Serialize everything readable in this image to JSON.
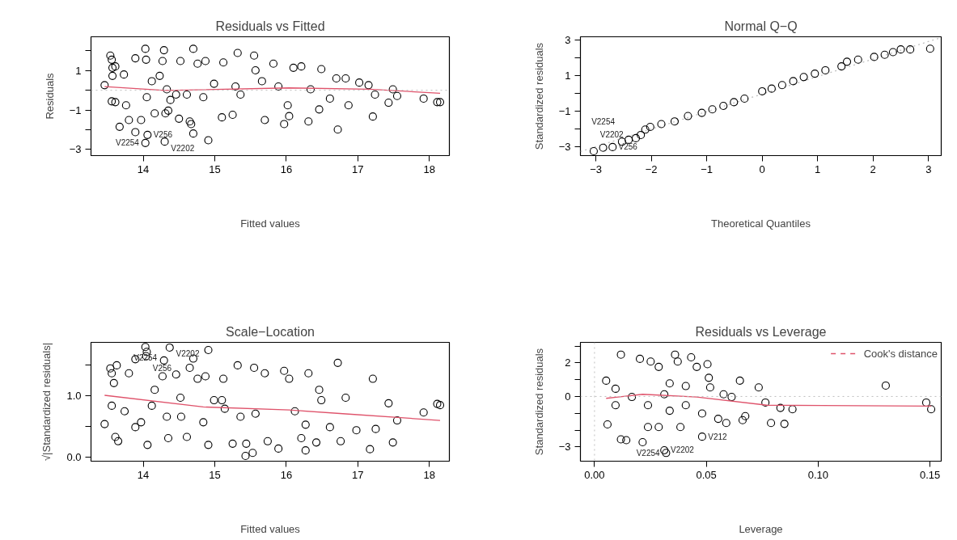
{
  "chart_data": [
    {
      "type": "scatter",
      "title": "Residuals vs Fitted",
      "xlabel": "Fitted values",
      "ylabel": "Residuals",
      "grid": false,
      "xlim": [
        13.27,
        18.28
      ],
      "ylim": [
        -3.31,
        2.71
      ],
      "xticks": [
        14,
        15,
        16,
        17,
        18
      ],
      "yticks": [
        {
          "value": -3,
          "label": "−3"
        },
        {
          "value": -2,
          "label": null
        },
        {
          "value": -1,
          "label": "−1"
        },
        {
          "value": 0,
          "label": null
        },
        {
          "value": 1,
          "label": "1"
        },
        {
          "value": 2,
          "label": null
        }
      ],
      "ref_lines": [
        {
          "axis": "y",
          "value": 0,
          "label": null,
          "color": "#bebebe",
          "line_style": "dotted"
        }
      ],
      "series": [
        {
          "marker": "circle",
          "color": "#000000",
          "x": [
            14.3,
            13.46,
            13.54,
            13.56,
            13.57,
            13.61,
            13.57,
            13.56,
            13.61,
            13.67,
            13.76,
            13.73,
            13.8,
            13.89,
            13.89,
            13.97,
            14.03,
            14.04,
            14.05,
            14.06,
            14.03,
            14.12,
            14.29,
            14.27,
            14.33,
            14.35,
            14.31,
            14.38,
            14.52,
            14.5,
            14.65,
            14.67,
            14.7,
            14.7,
            14.76,
            14.87,
            14.91,
            14.84,
            14.99,
            15.1,
            15.12,
            15.25,
            15.32,
            15.36,
            15.55,
            15.57,
            15.7,
            15.82,
            15.97,
            16.04,
            16.02,
            16.1,
            16.21,
            16.31,
            16.46,
            16.49,
            16.61,
            16.7,
            16.72,
            16.83,
            16.87,
            17.02,
            17.15,
            17.21,
            17.24,
            17.43,
            17.49,
            17.55,
            17.92,
            18.11,
            18.15,
            15.29,
            15.66,
            15.89,
            16.34,
            14.61,
            14.46,
            14.16,
            14.23
          ],
          "values": [
            -2.6,
            0.26,
            1.76,
            1.55,
            1.14,
            1.21,
            0.73,
            -0.56,
            -0.6,
            -1.85,
            -0.76,
            0.8,
            -1.51,
            -2.12,
            1.62,
            -1.51,
            2.1,
            1.55,
            -0.35,
            -2.26,
            -2.67,
            0.46,
            2.03,
            1.48,
            0.05,
            -1.03,
            -1.17,
            -0.49,
            1.48,
            -1.44,
            -1.58,
            -1.71,
            -2.19,
            2.1,
            1.35,
            1.48,
            -2.53,
            -0.35,
            0.33,
            -1.37,
            1.41,
            -1.24,
            1.89,
            -0.22,
            1.76,
            1.01,
            -1.51,
            1.35,
            -1.71,
            -1.31,
            -0.76,
            1.14,
            1.21,
            -1.58,
            -0.97,
            1.07,
            -0.42,
            0.6,
            -1.99,
            0.6,
            -0.76,
            0.39,
            0.26,
            -1.33,
            -0.22,
            -0.63,
            0.05,
            -0.29,
            -0.42,
            -0.6,
            -0.6,
            0.19,
            0.46,
            0.19,
            0.05,
            -0.22,
            -0.22,
            -1.17,
            0.73
          ]
        },
        {
          "type": "line",
          "color": "#df536b",
          "line_style": "solid",
          "x": [
            13.46,
            14.31,
            16.04,
            17.17,
            18.15
          ],
          "values": [
            0.19,
            -0.01,
            0.12,
            0.05,
            -0.15
          ]
        }
      ],
      "annotations": [
        {
          "text": "V256",
          "x": 14.06,
          "y": -2.26
        },
        {
          "text": "V2254",
          "x": 14.03,
          "y": -2.67
        },
        {
          "text": "V2202",
          "x": 14.3,
          "y": -2.6
        }
      ]
    },
    {
      "type": "scatter",
      "title": "Normal Q−Q",
      "xlabel": "Theoretical Quantiles",
      "ylabel": "Standardized residuals",
      "grid": false,
      "xlim": [
        -3.28,
        3.23
      ],
      "ylim": [
        -3.48,
        3.19
      ],
      "xticks": [
        {
          "value": -3,
          "label": "−3"
        },
        {
          "value": -2,
          "label": "−2"
        },
        {
          "value": -1,
          "label": "−1"
        },
        0,
        1,
        2,
        3
      ],
      "yticks": [
        {
          "value": -3,
          "label": "−3"
        },
        {
          "value": -2,
          "label": null
        },
        {
          "value": -1,
          "label": "−1"
        },
        {
          "value": 0,
          "label": null
        },
        {
          "value": 1,
          "label": "1"
        },
        {
          "value": 2,
          "label": null
        },
        {
          "value": 3,
          "label": "3"
        }
      ],
      "series": [
        {
          "type": "line",
          "color": "#bebebe",
          "line_style": "dotted",
          "x": [
            -3.28,
            3.23
          ],
          "values": [
            -3.25,
            3.15
          ]
        },
        {
          "marker": "circle",
          "color": "#000000",
          "x": [
            -3.04,
            -2.87,
            -2.7,
            -2.53,
            -2.41,
            -2.28,
            -2.19,
            -2.11,
            -2.02,
            -1.82,
            -1.58,
            -1.34,
            -1.09,
            -0.7,
            -0.32,
            0.0,
            0.36,
            0.75,
            1.14,
            1.43,
            1.53,
            1.73,
            2.02,
            2.21,
            2.36,
            2.5,
            2.67,
            3.03,
            -0.9,
            -0.51,
            0.17,
            0.56,
            0.95
          ],
          "values": [
            -3.23,
            -3.04,
            -3.0,
            -2.7,
            -2.59,
            -2.5,
            -2.32,
            -2.02,
            -1.87,
            -1.71,
            -1.56,
            -1.26,
            -1.08,
            -0.69,
            -0.28,
            0.13,
            0.48,
            0.93,
            1.31,
            1.53,
            1.79,
            1.91,
            2.06,
            2.18,
            2.33,
            2.48,
            2.48,
            2.52,
            -0.88,
            -0.48,
            0.28,
            0.7,
            1.12
          ]
        }
      ],
      "annotations": [
        {
          "text": "V256",
          "x": -2.7,
          "y": -3.0
        },
        {
          "text": "V2202",
          "x": -3.04,
          "y": -3.23
        },
        {
          "text": "V2254",
          "x": -2.87,
          "y": -3.04
        }
      ]
    },
    {
      "type": "scatter",
      "title": "Scale−Location",
      "xlabel": "Fitted values",
      "ylabel": "√|Standardized residuals|",
      "grid": false,
      "xlim": [
        13.27,
        18.28
      ],
      "ylim": [
        -0.066,
        1.875
      ],
      "xticks": [
        14,
        15,
        16,
        17,
        18
      ],
      "yticks": [
        {
          "value": 0,
          "label": "0.0"
        },
        {
          "value": 0.5,
          "label": null
        },
        {
          "value": 1,
          "label": "1.0"
        },
        {
          "value": 1.5,
          "label": null
        }
      ],
      "series": [
        {
          "marker": "circle",
          "color": "#000000",
          "x": [
            14.37,
            13.46,
            13.54,
            13.56,
            13.59,
            13.63,
            13.56,
            13.61,
            13.65,
            13.74,
            13.8,
            13.89,
            13.89,
            13.97,
            14.03,
            14.04,
            14.06,
            14.05,
            14.12,
            14.29,
            14.27,
            14.33,
            14.35,
            14.46,
            14.52,
            14.61,
            14.7,
            14.65,
            14.76,
            14.87,
            14.91,
            14.84,
            14.99,
            14.91,
            15.1,
            15.12,
            15.25,
            15.32,
            15.36,
            15.44,
            15.55,
            15.57,
            15.7,
            15.74,
            15.89,
            15.97,
            16.04,
            16.12,
            16.21,
            16.27,
            16.31,
            16.42,
            16.46,
            16.49,
            16.61,
            16.72,
            16.76,
            16.83,
            16.98,
            17.17,
            17.21,
            17.25,
            17.43,
            17.49,
            17.55,
            17.92,
            18.11,
            18.15,
            15.43,
            15.53,
            16.27,
            15.14,
            14.53,
            14.16
          ],
          "values": [
            1.79,
            0.54,
            1.45,
            1.37,
            1.21,
            1.5,
            0.84,
            0.33,
            0.26,
            0.75,
            1.37,
            1.6,
            0.49,
            0.57,
            1.8,
            1.65,
            0.2,
            1.72,
            0.84,
            1.58,
            1.32,
            0.66,
            0.31,
            1.35,
            0.97,
            0.33,
            1.61,
            1.46,
            1.28,
            1.32,
            1.75,
            0.57,
            0.93,
            0.2,
            0.93,
            1.28,
            0.22,
            1.5,
            0.66,
            0.22,
            1.46,
            0.71,
            1.37,
            0.26,
            0.14,
            1.41,
            1.28,
            0.75,
            0.31,
            0.11,
            1.37,
            0.24,
            1.1,
            0.93,
            0.49,
            1.54,
            0.26,
            0.97,
            0.44,
            0.13,
            1.28,
            0.46,
            0.88,
            0.24,
            0.6,
            0.73,
            0.87,
            0.85,
            0.02,
            0.07,
            0.53,
            0.79,
            0.66,
            1.1
          ]
        },
        {
          "type": "line",
          "color": "#df536b",
          "line_style": "solid",
          "x": [
            13.46,
            14.84,
            16.04,
            16.79,
            18.15
          ],
          "values": [
            1.01,
            0.82,
            0.77,
            0.71,
            0.6
          ]
        }
      ],
      "annotations": [
        {
          "text": "V2254",
          "x": 14.03,
          "y": 1.8
        },
        {
          "text": "V256",
          "x": 14.05,
          "y": 1.72
        },
        {
          "text": "V2202",
          "x": 14.37,
          "y": 1.79
        }
      ]
    },
    {
      "type": "scatter",
      "title": "Residuals vs Leverage",
      "xlabel": "Leverage",
      "ylabel": "Standardized residuals",
      "grid": false,
      "legend": "top right",
      "xlim": [
        -0.0063,
        0.155
      ],
      "ylim": [
        -3.85,
        3.22
      ],
      "xticks": [
        {
          "value": 0,
          "label": "0.00"
        },
        {
          "value": 0.05,
          "label": "0.05"
        },
        {
          "value": 0.1,
          "label": "0.10"
        },
        {
          "value": 0.15,
          "label": "0.15"
        }
      ],
      "yticks": [
        {
          "value": -3,
          "label": "−3"
        },
        {
          "value": -2,
          "label": null
        },
        {
          "value": -1,
          "label": null
        },
        {
          "value": 0,
          "label": "0"
        },
        {
          "value": 1,
          "label": null
        },
        {
          "value": 2,
          "label": "2"
        },
        {
          "value": 3,
          "label": null
        }
      ],
      "ref_lines": [
        {
          "axis": "y",
          "value": 0,
          "label": null,
          "color": "#bebebe",
          "line_style": "dotted"
        },
        {
          "axis": "x",
          "value": 0,
          "label": null,
          "color": "#bebebe",
          "line_style": "dotted"
        }
      ],
      "series": [
        {
          "marker": "circle",
          "color": "#000000",
          "x": [
            0.032,
            0.0052,
            0.0058,
            0.0118,
            0.0094,
            0.0118,
            0.0142,
            0.0203,
            0.0215,
            0.0239,
            0.0251,
            0.0287,
            0.0287,
            0.0312,
            0.0336,
            0.036,
            0.0372,
            0.0384,
            0.0408,
            0.0432,
            0.0457,
            0.0481,
            0.0505,
            0.0511,
            0.0517,
            0.0577,
            0.0589,
            0.0613,
            0.065,
            0.0662,
            0.0674,
            0.0734,
            0.0764,
            0.0789,
            0.0831,
            0.0849,
            0.0885,
            0.1302,
            0.1483,
            0.1505,
            0.0167,
            0.0239,
            0.0094,
            0.0336,
            0.0408,
            0.0553,
            0.0481,
            0.0312
          ],
          "values": [
            -3.36,
            0.94,
            -1.66,
            2.49,
            0.46,
            -2.55,
            -2.6,
            2.24,
            -2.72,
            -1.82,
            2.08,
            1.76,
            -1.82,
            0.13,
            -0.85,
            2.49,
            2.08,
            -1.82,
            -0.52,
            2.33,
            1.76,
            -2.39,
            1.92,
            1.11,
            0.54,
            0.13,
            -1.58,
            -0.03,
            0.94,
            -1.41,
            -1.17,
            0.54,
            -0.36,
            -1.58,
            -0.68,
            -1.63,
            -0.76,
            0.65,
            -0.36,
            -0.76,
            -0.03,
            -0.52,
            -0.52,
            0.78,
            0.62,
            -1.33,
            -1.01,
            -3.2
          ]
        },
        {
          "type": "line",
          "color": "#df536b",
          "line_style": "solid",
          "x": [
            0.0052,
            0.0215,
            0.0457,
            0.0771,
            0.1505
          ],
          "values": [
            -0.11,
            0.13,
            -0.03,
            -0.52,
            -0.57
          ]
        },
        {
          "type": "line",
          "name": "Cook's distance",
          "color": "#df536b",
          "line_style": "dashed"
        }
      ],
      "annotations": [
        {
          "text": "V212",
          "x": 0.0481,
          "y": -2.39
        },
        {
          "text": "V2202",
          "x": 0.0312,
          "y": -3.2
        },
        {
          "text": "V2254",
          "x": 0.032,
          "y": -3.36
        }
      ]
    }
  ]
}
